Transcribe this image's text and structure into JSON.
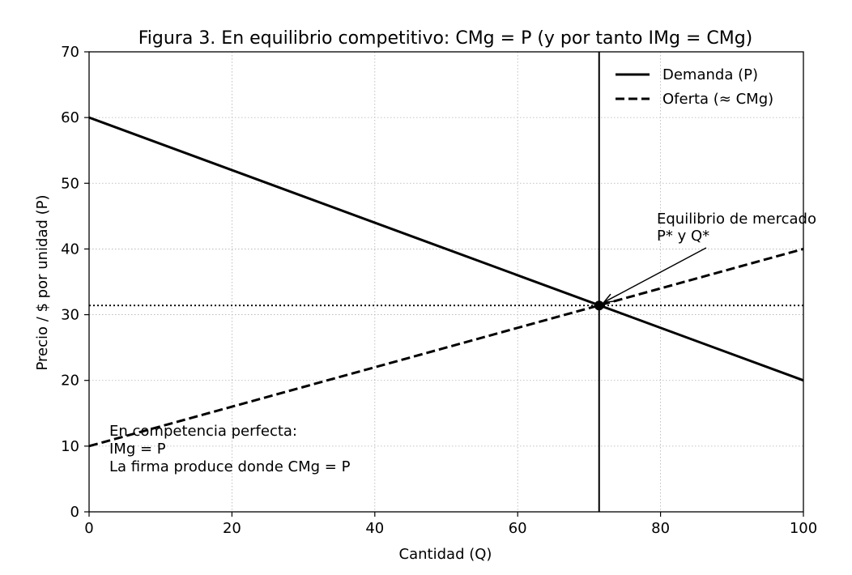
{
  "chart_data": {
    "type": "line",
    "title": "Figura 3. En equilibrio competitivo: CMg = P (y por tanto IMg = CMg)",
    "xlabel": "Cantidad (Q)",
    "ylabel": "Precio / $ por unidad (P)",
    "xlim": [
      0,
      100
    ],
    "ylim": [
      0,
      70
    ],
    "xticks": [
      0,
      20,
      40,
      60,
      80,
      100
    ],
    "yticks": [
      0,
      10,
      20,
      30,
      40,
      50,
      60,
      70
    ],
    "grid": true,
    "legend_position": "top-right",
    "series": [
      {
        "name": "Demanda (P)",
        "style": "solid",
        "color": "#000000",
        "x": [
          0,
          100
        ],
        "y": [
          60,
          20
        ]
      },
      {
        "name": "Oferta (≈ CMg)",
        "style": "dashed",
        "color": "#000000",
        "x": [
          0,
          100
        ],
        "y": [
          10,
          40
        ]
      }
    ],
    "equilibrium": {
      "q": 71.4,
      "p": 31.4
    },
    "annotations": {
      "equilibrium_label": [
        "Equilibrio de mercado",
        "P* y Q*"
      ],
      "competition_note": [
        "En competencia perfecta:",
        "IMg = P",
        "La firma produce donde CMg = P"
      ]
    }
  }
}
